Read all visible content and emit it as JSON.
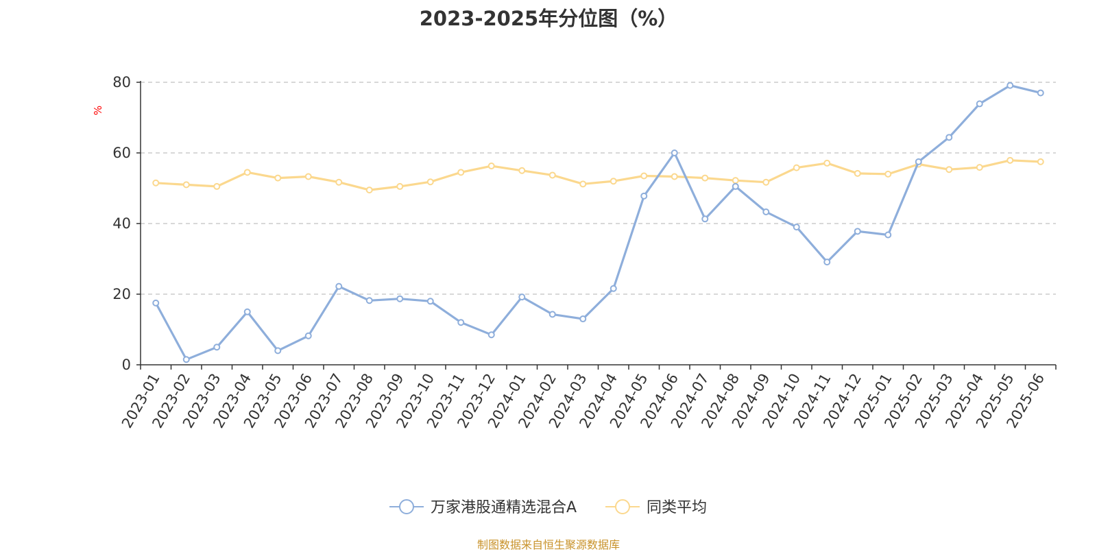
{
  "chart_data": {
    "type": "line",
    "title": "2023-2025年分位图（%）",
    "ylabel": "%",
    "xlabel": "",
    "ylim": [
      0,
      80
    ],
    "yticks": [
      0,
      20,
      40,
      60,
      80
    ],
    "grid": true,
    "legend_position": "bottom",
    "categories": [
      "2023-01",
      "2023-02",
      "2023-03",
      "2023-04",
      "2023-05",
      "2023-06",
      "2023-07",
      "2023-08",
      "2023-09",
      "2023-10",
      "2023-11",
      "2023-12",
      "2024-01",
      "2024-02",
      "2024-03",
      "2024-04",
      "2024-05",
      "2024-06",
      "2024-07",
      "2024-08",
      "2024-09",
      "2024-10",
      "2024-11",
      "2024-12",
      "2025-01",
      "2025-02",
      "2025-03",
      "2025-04",
      "2025-05",
      "2025-06"
    ],
    "series": [
      {
        "name": "万家港股通精选混合A",
        "color": "#8eaedb",
        "values": [
          17.5,
          1.5,
          5,
          15,
          4,
          8.2,
          22.2,
          18.2,
          18.7,
          18,
          12,
          8.5,
          19.2,
          14.3,
          13,
          21.6,
          47.8,
          60,
          41.3,
          50.5,
          43.3,
          39,
          29.1,
          37.8,
          36.8,
          57.5,
          64.4,
          73.9,
          79.1,
          77
        ]
      },
      {
        "name": "同类平均",
        "color": "#fbd88e",
        "values": [
          51.5,
          51,
          50.5,
          54.5,
          52.9,
          53.3,
          51.7,
          49.5,
          50.5,
          51.8,
          54.5,
          56.3,
          55,
          53.7,
          51.2,
          52,
          53.5,
          53.3,
          52.9,
          52.2,
          51.7,
          55.8,
          57.1,
          54.2,
          54,
          56.8,
          55.3,
          55.9,
          57.9,
          57.5
        ]
      }
    ]
  },
  "source_note": "制图数据来自恒生聚源数据库",
  "colors": {
    "axis": "#333333",
    "grid": "#cccccc",
    "ylabel": "#ff0000",
    "source": "#c8922a"
  }
}
